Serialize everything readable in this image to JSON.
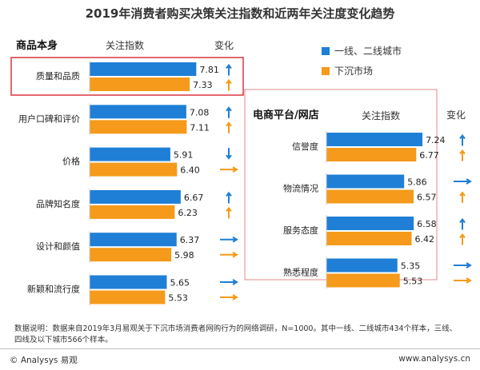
{
  "title": "2019年消费者购买决策关注指数和近两年关注度变化趋势",
  "colors": {
    "series1": "#1f7fd6",
    "series2": "#f59a1b",
    "highlight": "#d9363e",
    "panel": "#e06b6b"
  },
  "left_panel": {
    "title": "商品本身",
    "col_index": "关注指数",
    "col_change": "变化"
  },
  "right_panel": {
    "title": "电商平台/网店",
    "col_index": "关注指数",
    "col_change": "变化"
  },
  "chart_data": [
    {
      "type": "bar",
      "orientation": "horizontal",
      "title": "商品本身",
      "categories": [
        "质量和品质",
        "用户口碑和评价",
        "价格",
        "品牌知名度",
        "设计和颜值",
        "新颖和流行度"
      ],
      "series": [
        {
          "name": "一线、二线城市",
          "values": [
            7.81,
            7.08,
            5.91,
            6.67,
            6.37,
            5.65
          ]
        },
        {
          "name": "下沉市场",
          "values": [
            7.33,
            7.11,
            6.4,
            6.23,
            5.98,
            5.53
          ]
        }
      ],
      "value_labels": [
        [
          "7.81",
          "7.08",
          "5.91",
          "6.67",
          "6.37",
          "5.65"
        ],
        [
          "7.33",
          "7.11",
          "6.40",
          "6.23",
          "5.98",
          "5.53"
        ]
      ],
      "change": [
        [
          "up",
          "up",
          "down",
          "up",
          "right",
          "right"
        ],
        [
          "up",
          "up",
          "right",
          "up",
          "right",
          "right"
        ]
      ]
    },
    {
      "type": "bar",
      "orientation": "horizontal",
      "title": "电商平台/网店",
      "categories": [
        "信誉度",
        "物流情况",
        "服务态度",
        "熟悉程度"
      ],
      "series": [
        {
          "name": "一线、二线城市",
          "values": [
            7.24,
            5.86,
            6.58,
            5.35
          ]
        },
        {
          "name": "下沉市场",
          "values": [
            6.77,
            6.57,
            6.42,
            5.53
          ]
        }
      ],
      "value_labels": [
        [
          "7.24",
          "5.86",
          "6.58",
          "5.35"
        ],
        [
          "6.77",
          "6.57",
          "6.42",
          "5.53"
        ]
      ],
      "change": [
        [
          "up",
          "right",
          "up",
          "right"
        ],
        [
          "up",
          "up",
          "up",
          "right"
        ]
      ]
    }
  ],
  "legend": [
    {
      "label": "一线、二线城市",
      "color": "#1f7fd6"
    },
    {
      "label": "下沉市场",
      "color": "#f59a1b"
    }
  ],
  "note": "数据说明：数据来自2019年3月易观关于下沉市场消费者网购行为的网络调研，N=1000。其中一线、二线城市434个样本，三线、四线及以下城市566个样本。",
  "footer": {
    "brand": "© Analysys 易观",
    "url": "www.analysys.cn"
  },
  "watermark": "Analysys 易观"
}
